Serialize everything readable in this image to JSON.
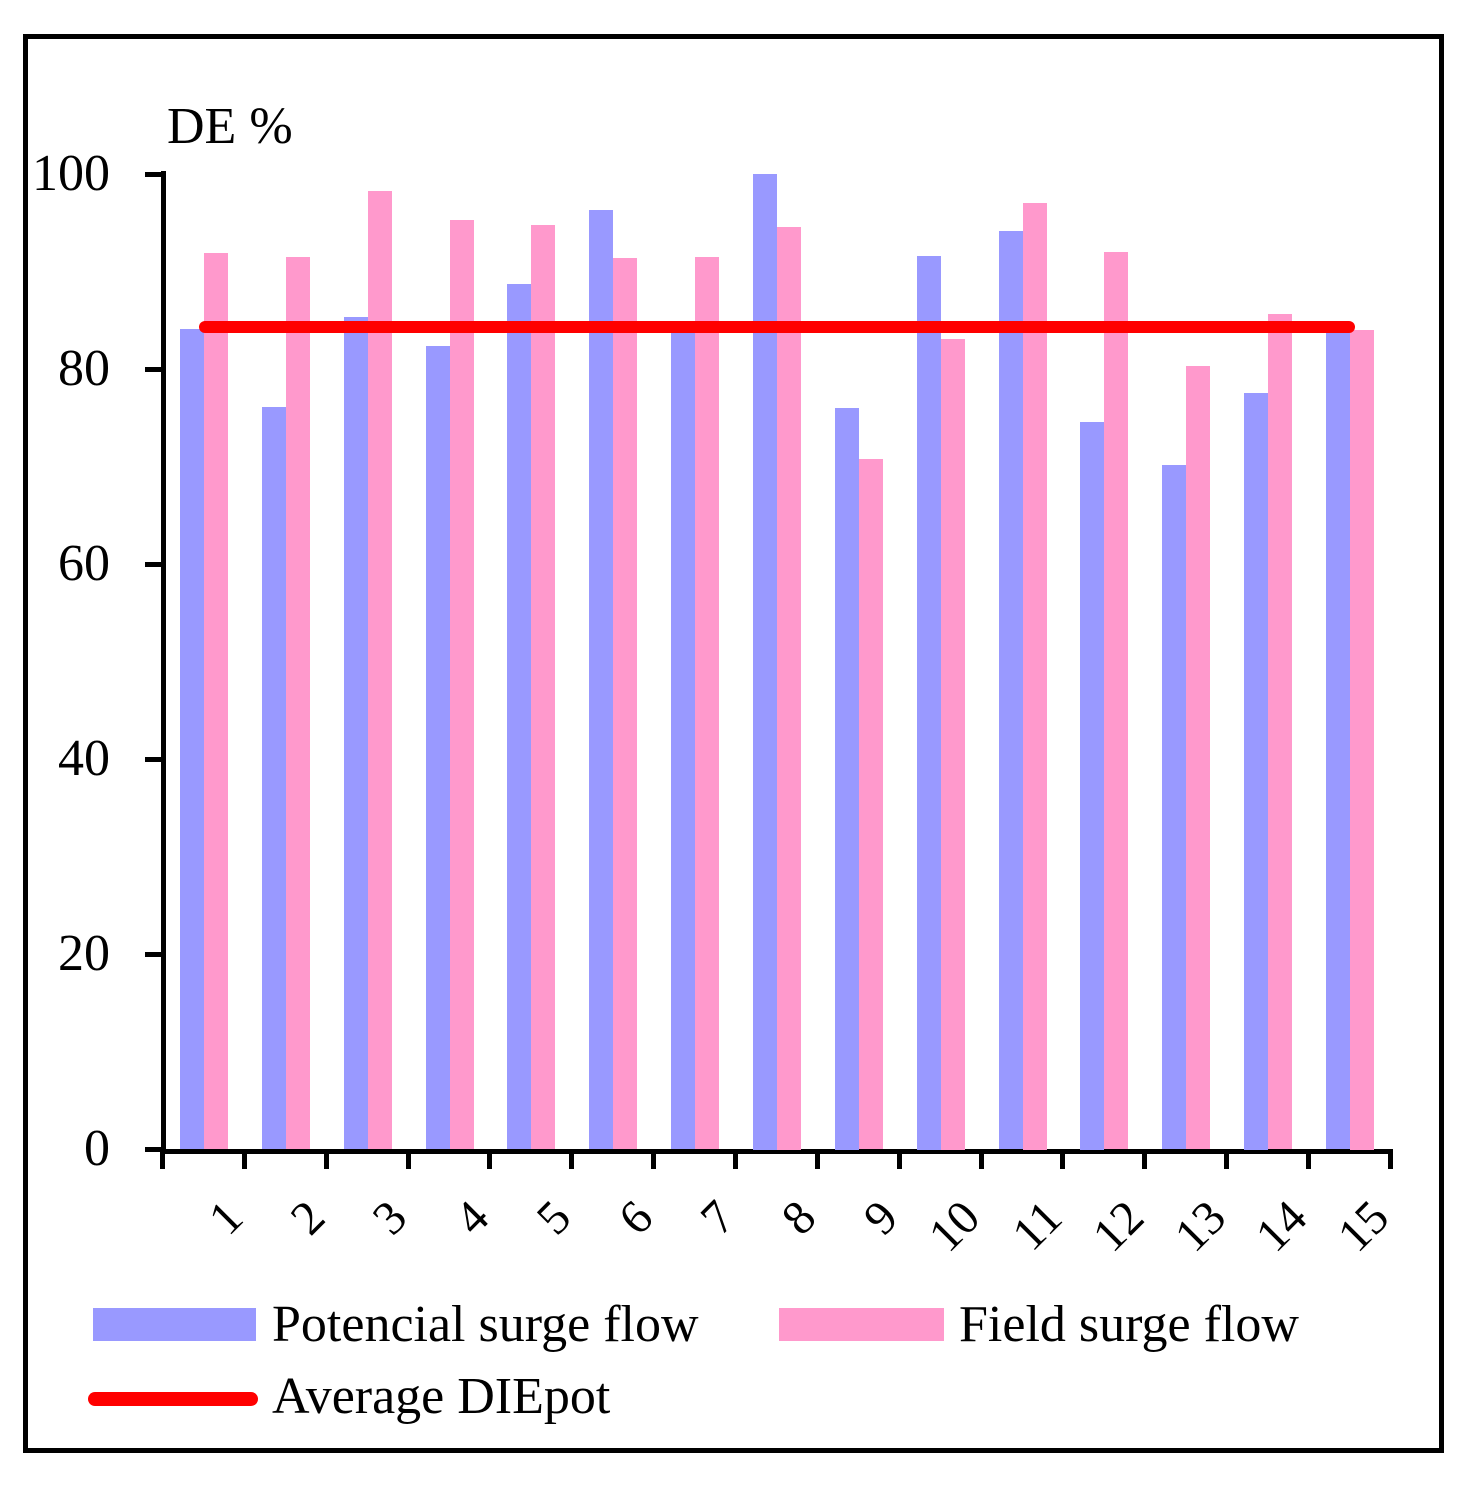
{
  "chart_data": {
    "type": "bar",
    "title": "DE %",
    "ylabel": "DE %",
    "xlabel": "",
    "categories": [
      "1",
      "2",
      "3",
      "4",
      "5",
      "6",
      "7",
      "8",
      "9",
      "10",
      "11",
      "12",
      "13",
      "14",
      "15"
    ],
    "series": [
      {
        "name": "Potencial surge flow",
        "color": "#9999FF",
        "values": [
          84.1,
          76.1,
          85.3,
          82.3,
          88.7,
          96.3,
          83.9,
          100.0,
          76.0,
          91.5,
          94.1,
          74.5,
          70.1,
          77.5,
          83.9
        ]
      },
      {
        "name": "Field surge flow",
        "color": "#FF99CC",
        "values": [
          91.8,
          91.4,
          98.2,
          95.2,
          94.7,
          91.3,
          91.4,
          94.5,
          70.7,
          83.0,
          97.0,
          91.9,
          80.3,
          85.6,
          84.0
        ]
      }
    ],
    "average_line": {
      "name": "Average DIEpot",
      "color": "#FF0000",
      "value": 84.3
    },
    "ylim": [
      0,
      100
    ],
    "yticks": [
      0,
      20,
      40,
      60,
      80,
      100
    ],
    "grid": false,
    "axis_color": "#000000",
    "legend_position": "bottom"
  }
}
